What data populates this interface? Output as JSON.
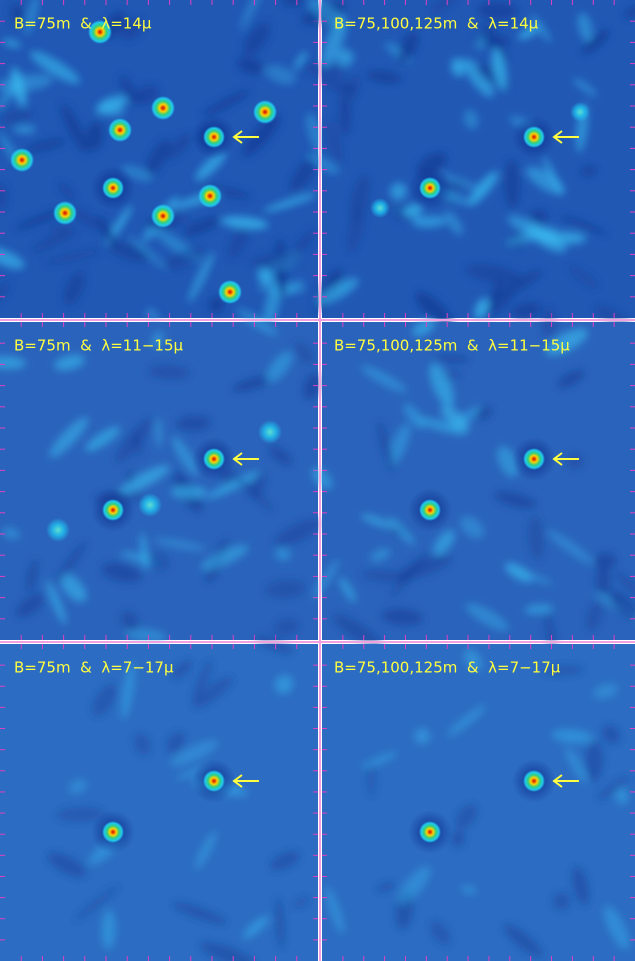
{
  "panels": [
    {
      "label": "B=75m  &  λ=14μ"
    },
    {
      "label": "B=75,100,125m  &  λ=14μ"
    },
    {
      "label": "B=75m  &  λ=11−15μ"
    },
    {
      "label": "B=75,100,125m  &  λ=11−15μ"
    },
    {
      "label": "B=75m  &  λ=7−17μ"
    },
    {
      "label": "B=75,100,125m  &  λ=7−17μ"
    }
  ]
}
